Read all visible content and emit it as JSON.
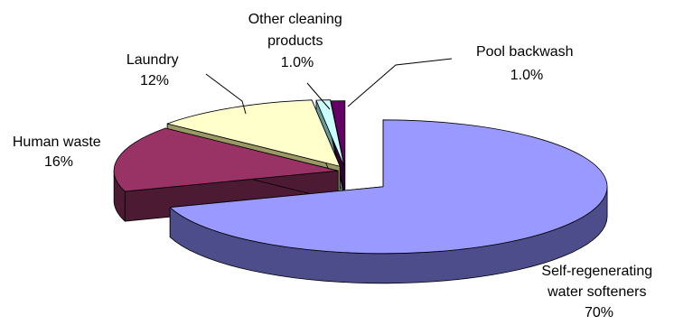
{
  "chart_data": {
    "type": "pie",
    "exploded": true,
    "three_d": true,
    "legend": "none",
    "slices": [
      {
        "name": "Self-regenerating water softeners",
        "value": 70,
        "value_label": "70%",
        "label_lines": [
          "Self-regenerating",
          "water softeners",
          "70%"
        ],
        "top_color": "#9999ff",
        "side_color": "#4d4d8c"
      },
      {
        "name": "Human waste",
        "value": 16,
        "value_label": "16%",
        "label_lines": [
          "Human waste",
          "16%"
        ],
        "top_color": "#993366",
        "side_color": "#4d1a33"
      },
      {
        "name": "Laundry",
        "value": 12,
        "value_label": "12%",
        "label_lines": [
          "Laundry",
          "12%"
        ],
        "top_color": "#ffffcc",
        "side_color": "#999966"
      },
      {
        "name": "Other cleaning products",
        "value": 1.0,
        "value_label": "1.0%",
        "label_lines": [
          "Other cleaning",
          "products",
          "1.0%"
        ],
        "top_color": "#ccffff",
        "side_color": "#669999"
      },
      {
        "name": "Pool backwash",
        "value": 1.0,
        "value_label": "1.0%",
        "label_lines": [
          "Pool backwash",
          "1.0%"
        ],
        "top_color": "#660066",
        "side_color": "#330033"
      }
    ]
  }
}
